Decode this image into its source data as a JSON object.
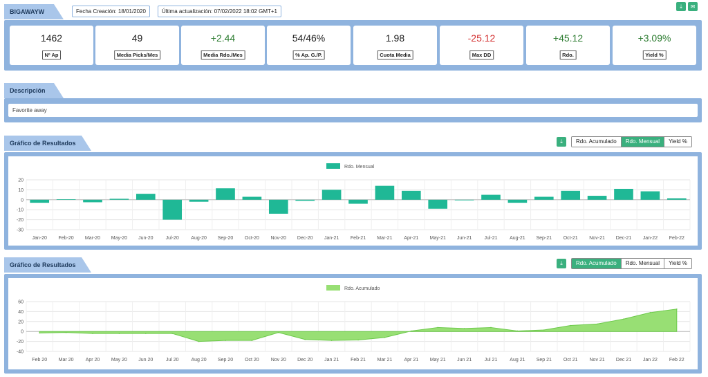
{
  "header": {
    "title": "BIGAWAYW",
    "created": "Fecha Creación: 18/01/2020",
    "updated": "Última actualización: 07/02/2022 18:02 GMT+1"
  },
  "stats": [
    {
      "value": "1462",
      "label": "Nº Ap",
      "tone": "neutral"
    },
    {
      "value": "49",
      "label": "Media Picks/Mes",
      "tone": "neutral"
    },
    {
      "value": "+2.44",
      "label": "Media Rdo./Mes",
      "tone": "pos"
    },
    {
      "value": "54/46%",
      "label": "% Ap. G./P.",
      "tone": "neutral"
    },
    {
      "value": "1.98",
      "label": "Cuota Media",
      "tone": "neutral"
    },
    {
      "value": "-25.12",
      "label": "Max DD",
      "tone": "neg"
    },
    {
      "value": "+45.12",
      "label": "Rdo.",
      "tone": "pos"
    },
    {
      "value": "+3.09%",
      "label": "Yield %",
      "tone": "pos"
    }
  ],
  "description": {
    "title": "Descripción",
    "text": "Favorite away"
  },
  "chart1_section": {
    "title": "Gráfico de Resultados",
    "buttons": [
      "Rdo. Acumulado",
      "Rdo. Mensual",
      "Yield %"
    ],
    "active": 1
  },
  "chart2_section": {
    "title": "Gráfico de Resultados",
    "buttons": [
      "Rdo. Acumulado",
      "Rdo. Mensual",
      "Yield %"
    ],
    "active": 0
  },
  "colors": {
    "bar": "#1fb896",
    "area": "#98df74",
    "area_line": "#6cc94a",
    "panel": "#8fb3de",
    "button": "#3ab07e"
  },
  "chart_data": [
    {
      "type": "bar",
      "legend": "Rdo. Mensual",
      "categories": [
        "Jan-20",
        "Feb-20",
        "Mar-20",
        "May-20",
        "Jun-20",
        "Jul-20",
        "Aug-20",
        "Sep-20",
        "Oct-20",
        "Nov-20",
        "Dec-20",
        "Jan-21",
        "Feb-21",
        "Mar-21",
        "Apr-21",
        "May-21",
        "Jun-21",
        "Jul-21",
        "Aug-21",
        "Sep-21",
        "Oct-21",
        "Nov-21",
        "Dec-21",
        "Jan-22",
        "Feb-22"
      ],
      "values": [
        -3,
        0.5,
        -2.5,
        1,
        6,
        -20,
        -2,
        11.5,
        3,
        -14,
        -1,
        10,
        -4,
        14,
        9,
        -9,
        0,
        5,
        -3,
        3,
        9,
        4,
        11,
        8.5,
        1.5
      ],
      "ylim": [
        -30,
        20
      ],
      "yticks": [
        20,
        10,
        0,
        -10,
        -20,
        -30
      ]
    },
    {
      "type": "area",
      "legend": "Rdo. Acumulado",
      "categories": [
        "Feb 20",
        "Mar 20",
        "Apr 20",
        "May 20",
        "Jun 20",
        "Jul 20",
        "Aug 20",
        "Sep 20",
        "Oct 20",
        "Nov 20",
        "Dec 20",
        "Jan 21",
        "Feb 21",
        "Mar 21",
        "Apr 21",
        "May 21",
        "Jun 21",
        "Jul 21",
        "Aug 21",
        "Sep 21",
        "Oct 21",
        "Nov 21",
        "Dec 21",
        "Jan 22",
        "Feb 22"
      ],
      "values": [
        -3,
        -2,
        -4,
        -4,
        -4,
        -4,
        -20,
        -18,
        -18,
        -2,
        -16,
        -18,
        -17,
        -12,
        1,
        8,
        6,
        8,
        1,
        3,
        12,
        15,
        25,
        38,
        45
      ],
      "ylim": [
        -40,
        60
      ],
      "yticks": [
        60,
        40,
        20,
        0,
        -20,
        -40
      ]
    }
  ]
}
